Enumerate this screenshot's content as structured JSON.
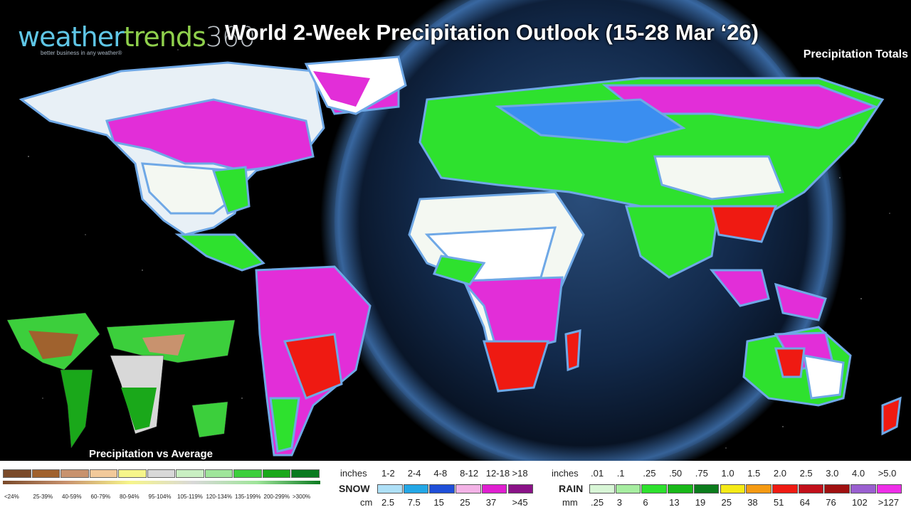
{
  "title": "World 2-Week Precipitation Outlook (15-28 Mar ‘26)",
  "subtitle": "Precipitation Totals",
  "logo": {
    "part1": "weather",
    "part2": "trends",
    "part3": "360",
    "tagline": "better business in any weather®"
  },
  "inset_label": "Precipitation vs Average",
  "avg_legend": [
    {
      "label": "<24%",
      "color": "#7a4a2a"
    },
    {
      "label": "25-39%",
      "color": "#a0622e"
    },
    {
      "label": "40-59%",
      "color": "#c8926e"
    },
    {
      "label": "60-79%",
      "color": "#f2c99a"
    },
    {
      "label": "80-94%",
      "color": "#f6f58a"
    },
    {
      "label": "95-104%",
      "color": "#d8d8d8"
    },
    {
      "label": "105-119%",
      "color": "#c9efc2"
    },
    {
      "label": "120-134%",
      "color": "#9fe59a"
    },
    {
      "label": "135-199%",
      "color": "#3ccf3c"
    },
    {
      "label": "200-299%",
      "color": "#1aa81a"
    },
    {
      "label": ">300%",
      "color": "#0a7a20"
    }
  ],
  "snow": {
    "units_top": "inches",
    "units_bottom": "cm",
    "label": "SNOW",
    "inches": [
      "1-2",
      "2-4",
      "4-8",
      "8-12",
      "12-18",
      ">18"
    ],
    "cm": [
      "2.5",
      "7.5",
      "15",
      "25",
      "37",
      ">45"
    ],
    "colors": [
      "#aee0f7",
      "#23a7e6",
      "#1f4fd8",
      "#f3b2e6",
      "#e01fd0",
      "#8a1287"
    ]
  },
  "rain": {
    "units_top": "inches",
    "units_bottom": "mm",
    "label": "RAIN",
    "inches": [
      ".01",
      ".1",
      ".25",
      ".50",
      ".75",
      "1.0",
      "1.5",
      "2.0",
      "2.5",
      "3.0",
      "4.0",
      ">5.0"
    ],
    "mm": [
      ".25",
      "3",
      "6",
      "13",
      "19",
      "25",
      "38",
      "51",
      "64",
      "76",
      "102",
      ">127"
    ],
    "colors": [
      "#d8f6d6",
      "#a6eda0",
      "#2ee12e",
      "#18b818",
      "#0b7c1c",
      "#f5ea16",
      "#f59a12",
      "#ef1a12",
      "#c2101a",
      "#a01010",
      "#9a5fd0",
      "#ee2ee8"
    ]
  }
}
